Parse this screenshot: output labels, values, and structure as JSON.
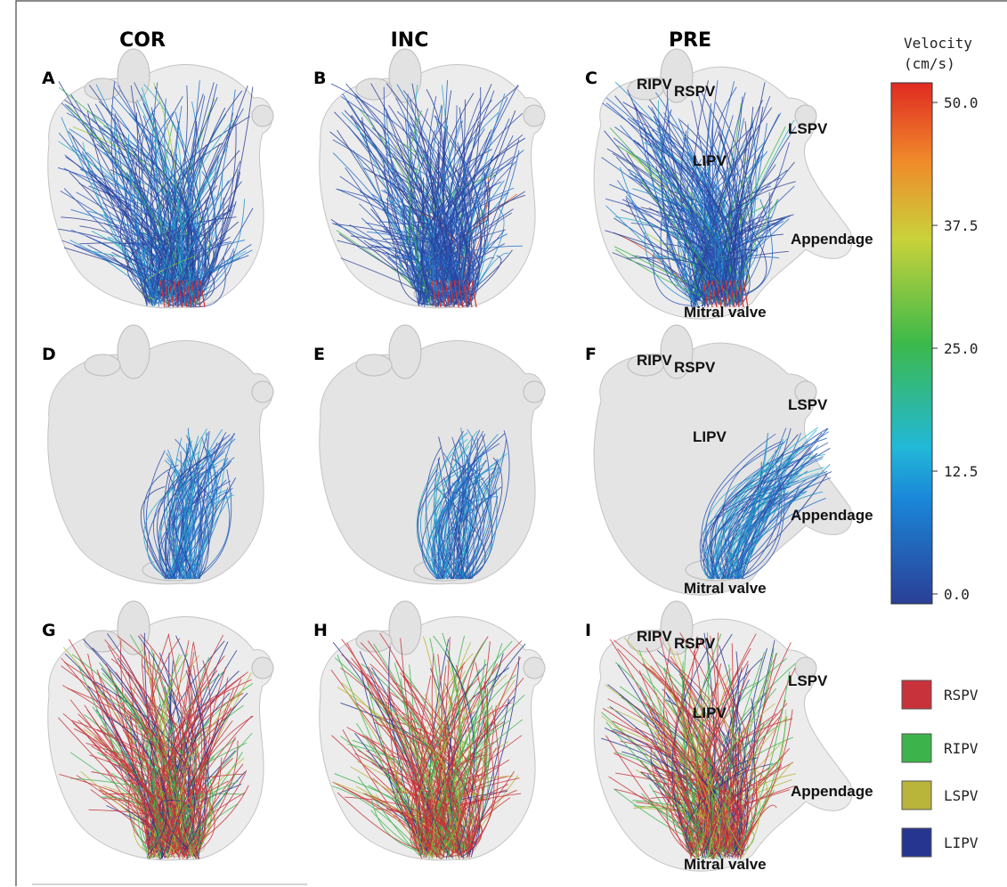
{
  "columns": [
    "COR",
    "INC",
    "PRE"
  ],
  "panels": [
    {
      "letter": "A",
      "labels": []
    },
    {
      "letter": "B",
      "labels": []
    },
    {
      "letter": "C",
      "labels": [
        "RIPV",
        "RSPV",
        "LSPV",
        "LIPV",
        "Appendage",
        "Mitral valve"
      ]
    },
    {
      "letter": "D",
      "labels": []
    },
    {
      "letter": "E",
      "labels": []
    },
    {
      "letter": "F",
      "labels": [
        "RIPV",
        "RSPV",
        "LSPV",
        "LIPV",
        "Appendage",
        "Mitral valve"
      ]
    },
    {
      "letter": "G",
      "labels": []
    },
    {
      "letter": "H",
      "labels": []
    },
    {
      "letter": "I",
      "labels": [
        "RIPV",
        "RSPV",
        "LSPV",
        "LIPV",
        "Appendage",
        "Mitral valve"
      ]
    }
  ],
  "colorbar": {
    "title": [
      "Velocity",
      "(cm/s)"
    ],
    "lim": [
      -1,
      52
    ],
    "ticks": [
      {
        "value": 0,
        "label": "0.0"
      },
      12.5,
      {
        "value": 25,
        "label": "25.0"
      },
      37.5,
      {
        "value": 50,
        "label": "50.0"
      }
    ]
  },
  "legend": [
    {
      "name": "RSPV",
      "color": "#c8323a"
    },
    {
      "name": "RIPV",
      "color": "#3cb44b"
    },
    {
      "name": "LSPV",
      "color": "#b9b43a"
    },
    {
      "name": "LIPV",
      "color": "#26358f"
    }
  ]
}
